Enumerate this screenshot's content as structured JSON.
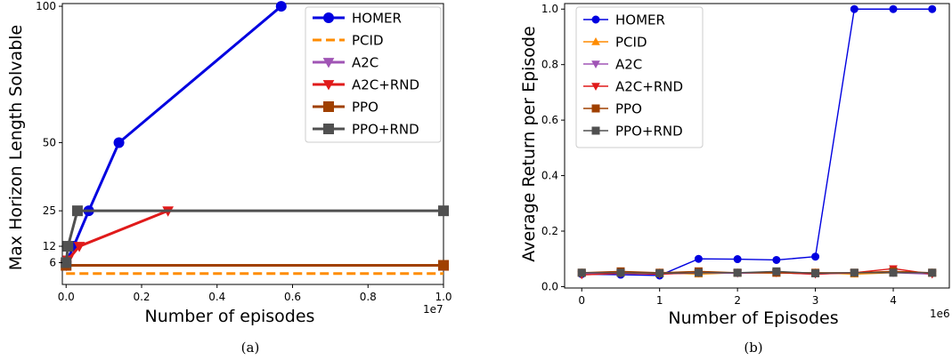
{
  "chart_data": [
    {
      "type": "line",
      "caption": "(a)",
      "xlabel": "Number of episodes",
      "ylabel": "Max Horizon Length Solvable",
      "x_offset_text": "1e7",
      "xlim": [
        -0.01,
        1.0
      ],
      "ylim": [
        -2,
        101
      ],
      "x_scale": 10000000,
      "xticks": [
        0.0,
        0.2,
        0.4,
        0.6,
        0.8,
        1.0
      ],
      "xtick_labels": [
        "0.0",
        "0.2",
        "0.4",
        "0.6",
        "0.8",
        "1.0"
      ],
      "yticks": [
        6,
        12,
        25,
        50,
        100
      ],
      "ytick_labels": [
        "6",
        "12",
        "25",
        "50",
        "100"
      ],
      "grid": false,
      "legend_position": "upper-right",
      "series": [
        {
          "name": "HOMER",
          "color": "#0000e0",
          "marker": "circle",
          "dash": "solid",
          "x": [
            0.0,
            0.02,
            0.06,
            0.14,
            0.57
          ],
          "y": [
            6,
            12,
            25,
            50,
            100
          ]
        },
        {
          "name": "PCID",
          "color": "#ff8c00",
          "marker": "none",
          "dash": "dashed",
          "x": [
            0.0,
            1.0
          ],
          "y": [
            2,
            2
          ]
        },
        {
          "name": "A2C",
          "color": "#a055b5",
          "marker": "triangle-down",
          "dash": "solid",
          "x": [
            0.0,
            1.0
          ],
          "y": [
            5,
            5
          ]
        },
        {
          "name": "A2C+RND",
          "color": "#e01a1a",
          "marker": "triangle-down",
          "dash": "solid",
          "x": [
            0.0,
            0.005,
            0.035,
            0.27
          ],
          "y": [
            5,
            7,
            12,
            25
          ]
        },
        {
          "name": "PPO",
          "color": "#a04000",
          "marker": "square",
          "dash": "solid",
          "x": [
            0.0,
            1.0
          ],
          "y": [
            5,
            5
          ]
        },
        {
          "name": "PPO+RND",
          "color": "#505050",
          "marker": "square",
          "dash": "solid",
          "x": [
            0.0,
            0.005,
            0.03,
            1.0
          ],
          "y": [
            6,
            12,
            25,
            25
          ]
        }
      ]
    },
    {
      "type": "line",
      "caption": "(b)",
      "xlabel": "Number of Episodes",
      "ylabel": "Average Return per Episode",
      "x_offset_text": "1e6",
      "xlim": [
        -0.22,
        4.72
      ],
      "ylim": [
        -0.005,
        1.02
      ],
      "x_scale": 1000000,
      "xticks": [
        0,
        1,
        2,
        3,
        4
      ],
      "xtick_labels": [
        "0",
        "1",
        "2",
        "3",
        "4"
      ],
      "yticks": [
        0.0,
        0.2,
        0.4,
        0.6,
        0.8,
        1.0
      ],
      "ytick_labels": [
        "0.0",
        "0.2",
        "0.4",
        "0.6",
        "0.8",
        "1.0"
      ],
      "grid": false,
      "legend_position": "upper-left",
      "x": [
        0,
        0.5,
        1.0,
        1.5,
        2.0,
        2.5,
        3.0,
        3.5,
        4.0,
        4.5
      ],
      "series": [
        {
          "name": "HOMER",
          "color": "#0000e0",
          "marker": "circle",
          "y": [
            0.045,
            0.043,
            0.04,
            0.1,
            0.099,
            0.096,
            0.108,
            1.0,
            1.0,
            1.0
          ]
        },
        {
          "name": "PCID",
          "color": "#ff8c00",
          "marker": "triangle-up",
          "y": [
            0.05,
            0.05,
            0.05,
            0.045,
            0.05,
            0.048,
            0.05,
            0.045,
            0.05,
            0.05
          ]
        },
        {
          "name": "A2C",
          "color": "#a055b5",
          "marker": "triangle-down",
          "y": [
            0.045,
            0.05,
            0.045,
            0.05,
            0.048,
            0.05,
            0.045,
            0.05,
            0.05,
            0.045
          ]
        },
        {
          "name": "A2C+RND",
          "color": "#e01a1a",
          "marker": "triangle-down",
          "y": [
            0.042,
            0.048,
            0.045,
            0.05,
            0.05,
            0.05,
            0.045,
            0.05,
            0.065,
            0.045
          ]
        },
        {
          "name": "PPO",
          "color": "#a04000",
          "marker": "square",
          "y": [
            0.05,
            0.055,
            0.05,
            0.055,
            0.05,
            0.05,
            0.05,
            0.05,
            0.055,
            0.05
          ]
        },
        {
          "name": "PPO+RND",
          "color": "#505050",
          "marker": "square",
          "y": [
            0.05,
            0.05,
            0.048,
            0.05,
            0.05,
            0.055,
            0.048,
            0.05,
            0.05,
            0.05
          ]
        }
      ]
    }
  ]
}
